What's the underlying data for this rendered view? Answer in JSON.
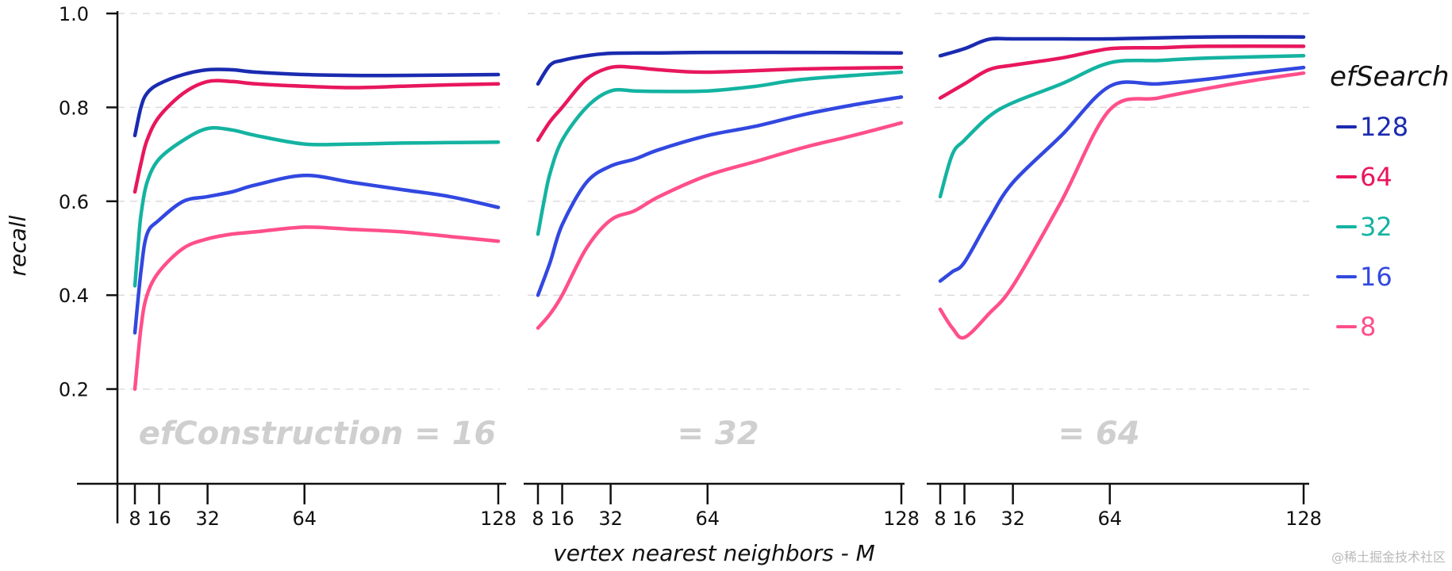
{
  "chart_data": {
    "type": "line",
    "ylabel": "recall",
    "xlabel": "vertex nearest neighbors - M",
    "ylim": [
      0,
      1.0
    ],
    "yticks": [
      "0.2",
      "0.4",
      "0.6",
      "0.8",
      "1.0"
    ],
    "ytick_values": [
      0.2,
      0.4,
      0.6,
      0.8,
      1.0
    ],
    "xticks": [
      "8",
      "16",
      "32",
      "64",
      "128"
    ],
    "xtick_values": [
      8,
      16,
      32,
      64,
      128
    ],
    "grid": "horizontal dashed",
    "legend": {
      "title": "efSearch",
      "placement": "right",
      "entries": [
        "128",
        "64",
        "32",
        "16",
        "8"
      ],
      "colors": [
        "#1a2bb0",
        "#e8175d",
        "#14b3a1",
        "#3248e0",
        "#ff4f8b"
      ]
    },
    "panels": [
      {
        "label": "efConstruction = 16",
        "series": [
          {
            "name": "128",
            "x": [
              8,
              10,
              12,
              16,
              24,
              32,
              40,
              48,
              64,
              80,
              96,
              112,
              128
            ],
            "values": [
              0.74,
              0.8,
              0.83,
              0.85,
              0.87,
              0.88,
              0.88,
              0.875,
              0.87,
              0.868,
              0.868,
              0.869,
              0.87
            ]
          },
          {
            "name": "64",
            "x": [
              8,
              10,
              12,
              16,
              24,
              32,
              40,
              48,
              64,
              80,
              96,
              112,
              128
            ],
            "values": [
              0.62,
              0.68,
              0.73,
              0.78,
              0.83,
              0.855,
              0.855,
              0.85,
              0.845,
              0.842,
              0.845,
              0.848,
              0.85
            ]
          },
          {
            "name": "32",
            "x": [
              8,
              9,
              10,
              12,
              16,
              24,
              32,
              40,
              48,
              64,
              80,
              96,
              112,
              128
            ],
            "values": [
              0.42,
              0.5,
              0.57,
              0.64,
              0.69,
              0.73,
              0.755,
              0.752,
              0.74,
              0.722,
              0.722,
              0.724,
              0.725,
              0.726
            ]
          },
          {
            "name": "16",
            "x": [
              8,
              10,
              12,
              16,
              24,
              32,
              40,
              48,
              64,
              80,
              96,
              112,
              128
            ],
            "values": [
              0.32,
              0.45,
              0.53,
              0.56,
              0.6,
              0.61,
              0.62,
              0.635,
              0.655,
              0.64,
              0.625,
              0.61,
              0.587
            ]
          },
          {
            "name": "8",
            "x": [
              8,
              10,
              12,
              16,
              24,
              32,
              40,
              48,
              64,
              80,
              96,
              112,
              128
            ],
            "values": [
              0.2,
              0.33,
              0.4,
              0.45,
              0.5,
              0.52,
              0.53,
              0.535,
              0.545,
              0.54,
              0.535,
              0.525,
              0.515
            ]
          }
        ]
      },
      {
        "label": "= 32",
        "series": [
          {
            "name": "128",
            "x": [
              8,
              12,
              16,
              24,
              32,
              48,
              64,
              96,
              128
            ],
            "values": [
              0.85,
              0.89,
              0.9,
              0.91,
              0.915,
              0.916,
              0.917,
              0.917,
              0.916
            ]
          },
          {
            "name": "64",
            "x": [
              8,
              12,
              16,
              24,
              32,
              40,
              48,
              64,
              96,
              128
            ],
            "values": [
              0.73,
              0.77,
              0.8,
              0.86,
              0.885,
              0.885,
              0.88,
              0.875,
              0.882,
              0.885
            ]
          },
          {
            "name": "32",
            "x": [
              8,
              10,
              12,
              16,
              24,
              32,
              40,
              48,
              64,
              80,
              96,
              128
            ],
            "values": [
              0.53,
              0.6,
              0.66,
              0.73,
              0.8,
              0.835,
              0.835,
              0.834,
              0.835,
              0.845,
              0.86,
              0.875
            ]
          },
          {
            "name": "16",
            "x": [
              8,
              12,
              16,
              24,
              32,
              40,
              48,
              64,
              80,
              96,
              112,
              128
            ],
            "values": [
              0.4,
              0.47,
              0.55,
              0.64,
              0.675,
              0.69,
              0.71,
              0.74,
              0.76,
              0.785,
              0.805,
              0.822
            ]
          },
          {
            "name": "8",
            "x": [
              8,
              12,
              16,
              24,
              32,
              40,
              48,
              64,
              80,
              96,
              112,
              128
            ],
            "values": [
              0.33,
              0.36,
              0.4,
              0.5,
              0.56,
              0.58,
              0.61,
              0.655,
              0.685,
              0.715,
              0.74,
              0.767
            ]
          }
        ]
      },
      {
        "label": "= 64",
        "series": [
          {
            "name": "128",
            "x": [
              8,
              16,
              24,
              32,
              48,
              64,
              96,
              128
            ],
            "values": [
              0.91,
              0.925,
              0.945,
              0.946,
              0.946,
              0.946,
              0.95,
              0.95
            ]
          },
          {
            "name": "64",
            "x": [
              8,
              16,
              24,
              32,
              48,
              64,
              80,
              96,
              128
            ],
            "values": [
              0.82,
              0.85,
              0.88,
              0.89,
              0.905,
              0.925,
              0.927,
              0.93,
              0.93
            ]
          },
          {
            "name": "32",
            "x": [
              8,
              12,
              16,
              24,
              32,
              48,
              64,
              80,
              96,
              128
            ],
            "values": [
              0.61,
              0.7,
              0.73,
              0.78,
              0.81,
              0.85,
              0.895,
              0.9,
              0.905,
              0.91
            ]
          },
          {
            "name": "16",
            "x": [
              8,
              12,
              16,
              24,
              32,
              48,
              64,
              80,
              96,
              112,
              128
            ],
            "values": [
              0.43,
              0.45,
              0.47,
              0.56,
              0.64,
              0.74,
              0.845,
              0.85,
              0.86,
              0.873,
              0.885
            ]
          },
          {
            "name": "8",
            "x": [
              8,
              12,
              16,
              24,
              32,
              48,
              64,
              80,
              96,
              112,
              128
            ],
            "values": [
              0.37,
              0.33,
              0.31,
              0.36,
              0.42,
              0.6,
              0.795,
              0.82,
              0.84,
              0.858,
              0.873
            ]
          }
        ]
      }
    ]
  },
  "watermark": "@稀土掘金技术社区"
}
